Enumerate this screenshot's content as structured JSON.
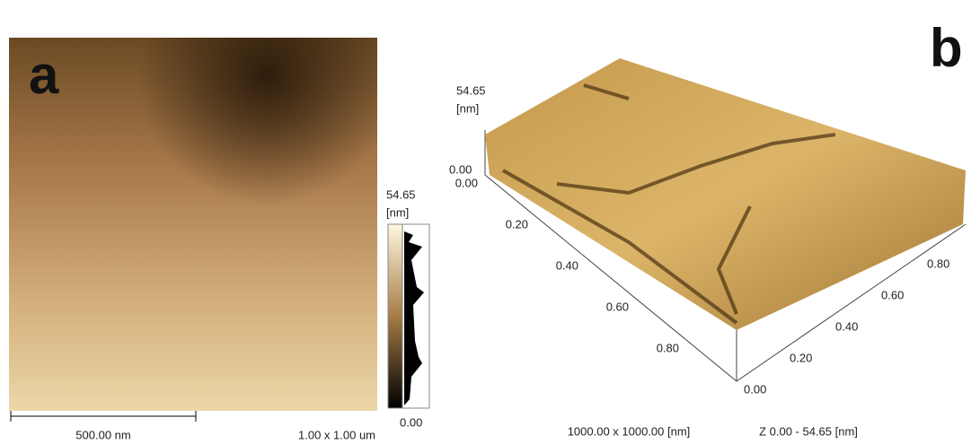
{
  "panel_a": {
    "label": "a",
    "colorbar": {
      "max": "54.65",
      "unit": "[nm]",
      "min": "0.00"
    },
    "scale_bar": "500.00 nm",
    "size": "1.00 x 1.00 um"
  },
  "panel_b": {
    "label": "b",
    "z_axis": {
      "max": "54.65",
      "unit": "[nm]",
      "min": "0.00"
    },
    "left_axis": [
      "0.00",
      "0.20",
      "0.40",
      "0.60",
      "0.80"
    ],
    "right_axis": [
      "0.00",
      "0.20",
      "0.40",
      "0.60",
      "0.80"
    ],
    "footer": {
      "size": "1000.00 x 1000.00 [nm]",
      "z_range": "Z  0.00  -  54.65 [nm]"
    }
  }
}
